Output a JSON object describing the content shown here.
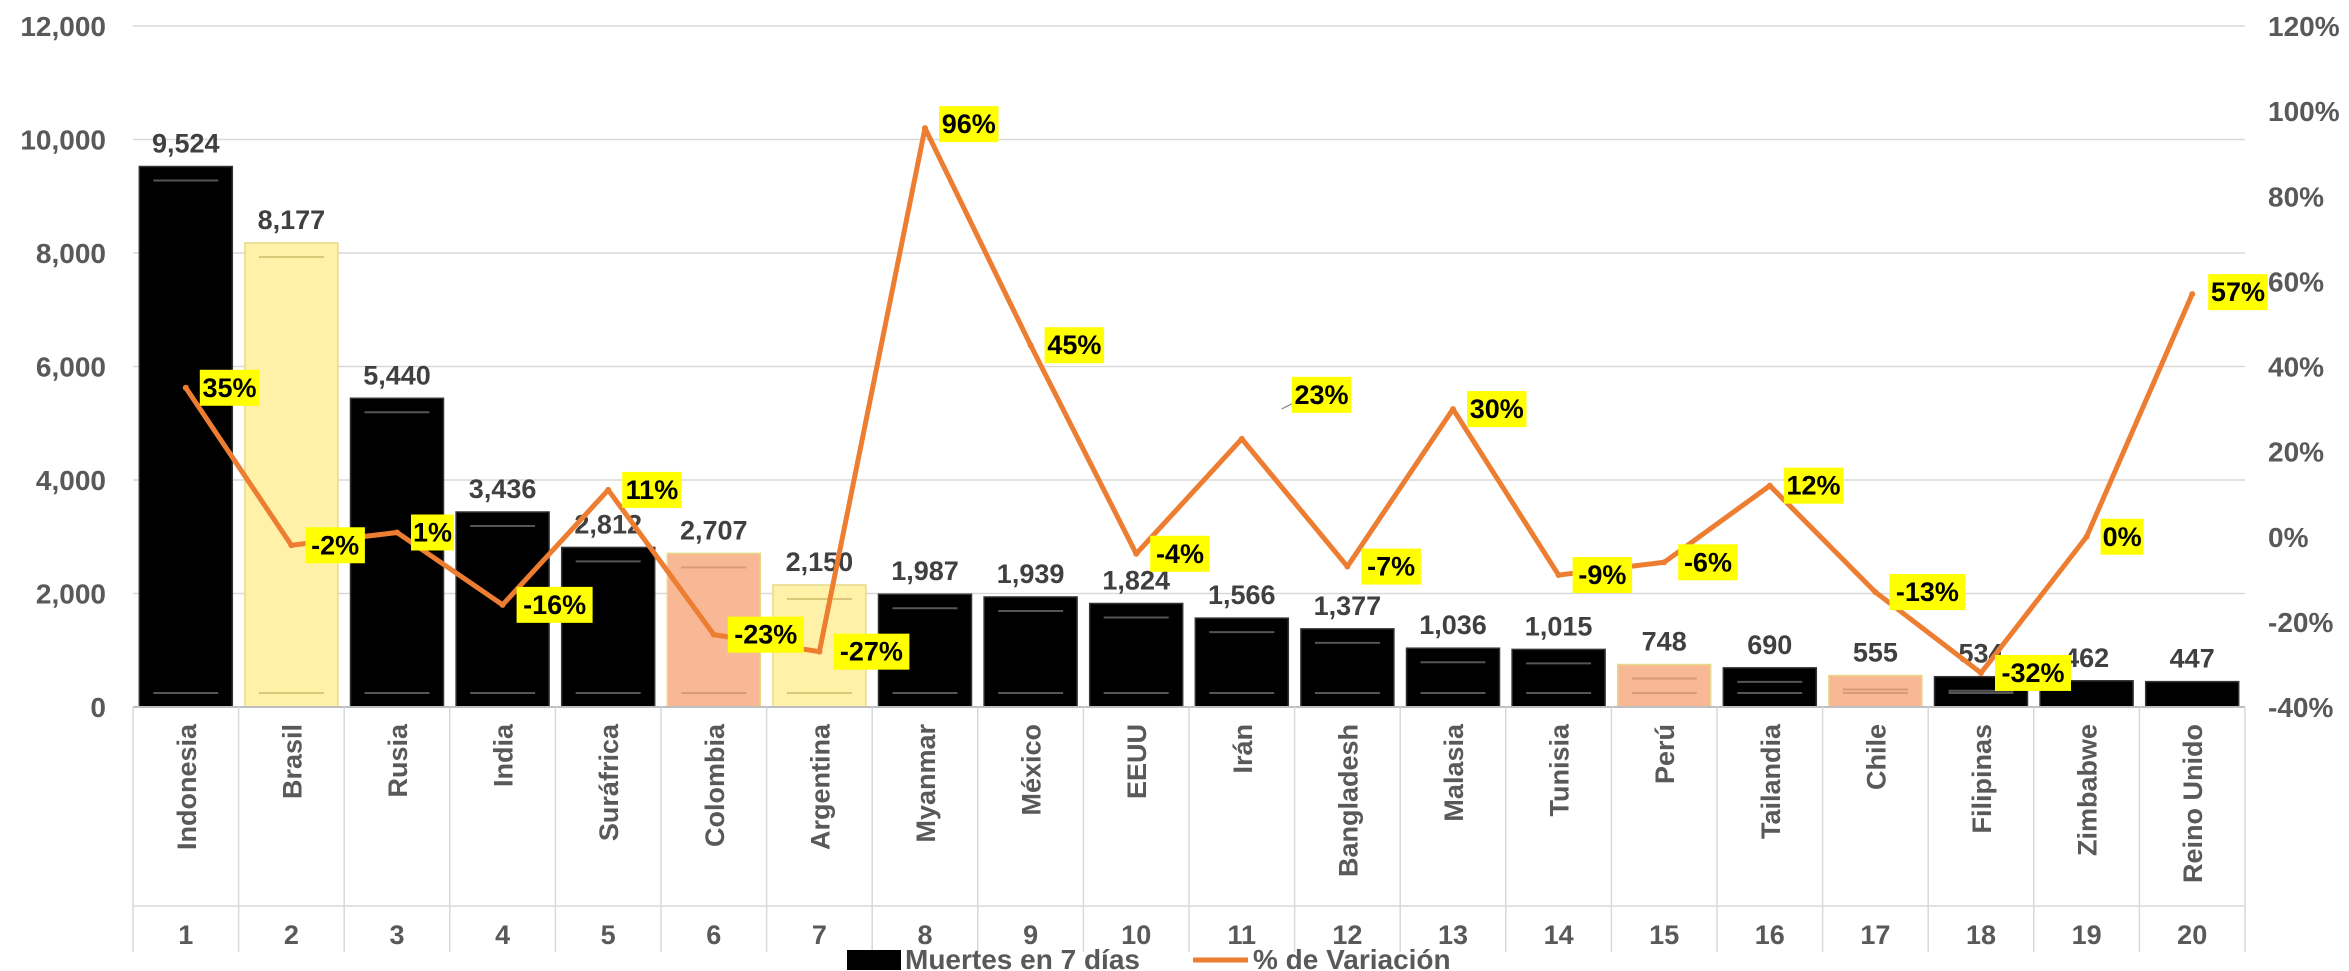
{
  "chart_data": {
    "type": "bar",
    "categories": [
      "Indonesia",
      "Brasil",
      "Rusia",
      "India",
      "Suráfrica",
      "Colombia",
      "Argentina",
      "Myanmar",
      "México",
      "EEUU",
      "Irán",
      "Bangladesh",
      "Malasia",
      "Tunisia",
      "Perú",
      "Tailandia",
      "Chile",
      "Filipinas",
      "Zimbabwe",
      "Reino Unido"
    ],
    "ranks": [
      "1",
      "2",
      "3",
      "4",
      "5",
      "6",
      "7",
      "8",
      "9",
      "10",
      "11",
      "12",
      "13",
      "14",
      "15",
      "16",
      "17",
      "18",
      "19",
      "20"
    ],
    "series": [
      {
        "name": "Muertes en 7 días",
        "kind": "bar",
        "axis": "left",
        "values": [
          9524,
          8177,
          5440,
          3436,
          2812,
          2707,
          2150,
          1987,
          1939,
          1824,
          1566,
          1377,
          1036,
          1015,
          748,
          690,
          555,
          534,
          462,
          447
        ],
        "labels": [
          "9,524",
          "8,177",
          "5,440",
          "3,436",
          "2,812",
          "2,707",
          "2,150",
          "1,987",
          "1,939",
          "1,824",
          "1,566",
          "1,377",
          "1,036",
          "1,015",
          "748",
          "690",
          "555",
          "534",
          "462",
          "447"
        ],
        "fill_colors": [
          "#000000",
          "#FFF2A8",
          "#000000",
          "#000000",
          "#000000",
          "#F8B896",
          "#FFF2A8",
          "#000000",
          "#000000",
          "#000000",
          "#000000",
          "#000000",
          "#000000",
          "#000000",
          "#F8B896",
          "#000000",
          "#F8B896",
          "#000000",
          "#000000",
          "#000000"
        ]
      },
      {
        "name": "% de Variación",
        "kind": "line",
        "axis": "right",
        "color": "#ED7D31",
        "values": [
          35,
          -2,
          1,
          -16,
          11,
          -23,
          -27,
          96,
          45,
          -4,
          23,
          -7,
          30,
          -9,
          -6,
          12,
          -13,
          -32,
          0,
          57
        ],
        "labels": [
          "35%",
          "-2%",
          "1%",
          "-16%",
          "11%",
          "-23%",
          "-27%",
          "96%",
          "45%",
          "-4%",
          "23%",
          "-7%",
          "30%",
          "-9%",
          "-6%",
          "12%",
          "-13%",
          "-32%",
          "0%",
          "57%"
        ]
      }
    ],
    "left_axis": {
      "min": 0,
      "max": 12000,
      "ticks": [
        "0",
        "2,000",
        "4,000",
        "6,000",
        "8,000",
        "10,000",
        "12,000"
      ]
    },
    "right_axis": {
      "min": -40,
      "max": 120,
      "ticks": [
        "-40%",
        "-20%",
        "0%",
        "20%",
        "40%",
        "60%",
        "80%",
        "100%",
        "120%"
      ]
    },
    "grid": true,
    "legend_position": "bottom",
    "label_box_color": "#FFFF00"
  },
  "legend": {
    "bar_label": "Muertes en 7 días",
    "line_label": "% de Variación"
  }
}
